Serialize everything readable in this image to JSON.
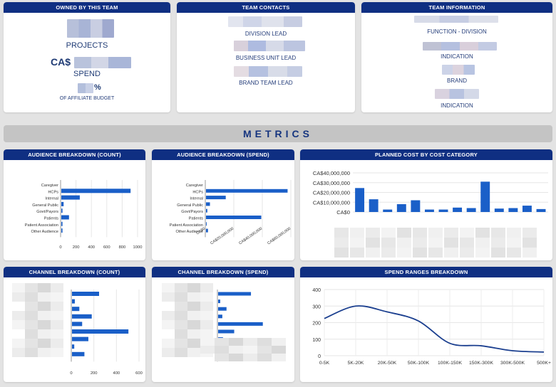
{
  "top": {
    "owned": {
      "title": "OWNED BY THIS TEAM",
      "projects_label": "PROJECTS",
      "currency": "CA$",
      "spend_label": "SPEND",
      "percent_sign": "%",
      "budget_label": "OF AFFILIATE BUDGET"
    },
    "contacts": {
      "title": "TEAM CONTACTS",
      "division_lead": "DIVISION LEAD",
      "bu_lead": "BUSINESS UNIT LEAD",
      "brand_lead": "BRAND TEAM LEAD"
    },
    "info": {
      "title": "TEAM INFORMATION",
      "function": "FUNCTION - DIVISION",
      "indication1": "INDICATION",
      "brand": "BRAND",
      "indication2": "INDICATION"
    }
  },
  "metrics_label": "METRICS",
  "panels": {
    "aud_count": "AUDIENCE BREAKDOWN (COUNT)",
    "aud_spend": "AUDIENCE BREAKDOWN (SPEND)",
    "planned": "PLANNED COST BY COST CATEGORY",
    "chan_count": "CHANNEL BREAKDOWN (COUNT)",
    "chan_spend": "CHANNEL BREAKDOWN (SPEND)",
    "spend_ranges": "SPEND RANGES BREAKDOWN"
  },
  "colors": {
    "header": "#0f2f82",
    "bar": "#1a5fc8",
    "line": "#1b3f8f"
  },
  "chart_data": [
    {
      "type": "bar",
      "title": "AUDIENCE BREAKDOWN (COUNT)",
      "orientation": "horizontal",
      "categories": [
        "Caregiver",
        "HCPs",
        "Internal",
        "General Public",
        "Govt/Payors",
        "Patients",
        "Patient Association",
        "Other Audience"
      ],
      "values": [
        0,
        900,
        240,
        30,
        15,
        100,
        15,
        15
      ],
      "x_ticks": [
        "0",
        "200",
        "400",
        "600",
        "800",
        "1000"
      ],
      "xlim": [
        0,
        1000
      ]
    },
    {
      "type": "bar",
      "title": "AUDIENCE BREAKDOWN (SPEND)",
      "orientation": "horizontal",
      "categories": [
        "Caregiver",
        "HCPs",
        "Internal",
        "General Public",
        "Govt/Payors",
        "Patients",
        "Patient Association",
        "Other Audience"
      ],
      "values": [
        0,
        62000000,
        15000000,
        3000000,
        1000000,
        42000000,
        500000,
        1500000
      ],
      "x_ticks": [
        "CA$0",
        "CA$20,000,000",
        "CA$40,000,000",
        "CA$60,000,000"
      ],
      "xlim": [
        0,
        65000000
      ]
    },
    {
      "type": "bar",
      "title": "PLANNED COST BY COST CATEGORY",
      "values": [
        24500000,
        13000000,
        2500000,
        8000000,
        12000000,
        2500000,
        2500000,
        4500000,
        4000000,
        31000000,
        3500000,
        4000000,
        6500000,
        3000000
      ],
      "y_ticks": [
        "CA$0",
        "CA$10,000,000",
        "CA$20,000,000",
        "CA$30,000,000",
        "CA$40,000,000"
      ],
      "ylim": [
        0,
        40000000
      ]
    },
    {
      "type": "bar",
      "title": "CHANNEL BREAKDOWN (COUNT)",
      "orientation": "horizontal",
      "values": [
        240,
        25,
        65,
        175,
        90,
        500,
        145,
        20,
        110
      ],
      "x_ticks": [
        "0",
        "200",
        "400",
        "600"
      ],
      "xlim": [
        0,
        600
      ]
    },
    {
      "type": "bar",
      "title": "CHANNEL BREAKDOWN (SPEND)",
      "orientation": "horizontal",
      "values": [
        47,
        3,
        12,
        6,
        64,
        23,
        7,
        0.5,
        0.5
      ],
      "xlim": [
        0,
        100
      ]
    },
    {
      "type": "line",
      "title": "SPEND RANGES BREAKDOWN",
      "categories": [
        "0-5K",
        "5K-20K",
        "20K-50K",
        "50K-100K",
        "100K-150K",
        "150K-300K",
        "300K-500K",
        "500K+"
      ],
      "values": [
        225,
        300,
        265,
        210,
        75,
        60,
        30,
        22
      ],
      "y_ticks": [
        "0",
        "100",
        "200",
        "300",
        "400"
      ],
      "ylim": [
        0,
        400
      ]
    }
  ]
}
